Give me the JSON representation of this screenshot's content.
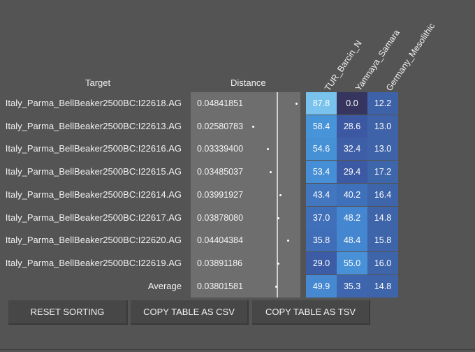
{
  "headers": {
    "target": "Target",
    "distance": "Distance",
    "columns": [
      "TUR_Barcin_N",
      "Yamnaya_Samara",
      "Germany_Mesolithic"
    ]
  },
  "rows": [
    {
      "target": "Italy_Parma_BellBeaker2500BC:I22618.AG",
      "distance": "0.04841851",
      "distance_value": 0.04841851,
      "values": [
        "87.8",
        "0.0",
        "12.2"
      ],
      "colors": [
        "#79c2ee",
        "#35355f",
        "#3e62a8"
      ]
    },
    {
      "target": "Italy_Parma_BellBeaker2500BC:I22613.AG",
      "distance": "0.02580783",
      "distance_value": 0.02580783,
      "values": [
        "58.4",
        "28.6",
        "13.0"
      ],
      "colors": [
        "#4894d8",
        "#3c58a2",
        "#3e63a8"
      ]
    },
    {
      "target": "Italy_Parma_BellBeaker2500BC:I22616.AG",
      "distance": "0.03339400",
      "distance_value": 0.033394,
      "values": [
        "54.6",
        "32.4",
        "13.0"
      ],
      "colors": [
        "#4690d6",
        "#3e5ea8",
        "#3e63a8"
      ]
    },
    {
      "target": "Italy_Parma_BellBeaker2500BC:I22615.AG",
      "distance": "0.03485037",
      "distance_value": 0.03485037,
      "values": [
        "53.4",
        "29.4",
        "17.2"
      ],
      "colors": [
        "#468ed5",
        "#3c59a3",
        "#3e66ab"
      ]
    },
    {
      "target": "Italy_Parma_BellBeaker2500BC:I22614.AG",
      "distance": "0.03991927",
      "distance_value": 0.03991927,
      "values": [
        "43.4",
        "40.2",
        "16.4"
      ],
      "colors": [
        "#4277c0",
        "#3f70ba",
        "#3e65aa"
      ]
    },
    {
      "target": "Italy_Parma_BellBeaker2500BC:I22617.AG",
      "distance": "0.03878080",
      "distance_value": 0.0387808,
      "values": [
        "37.0",
        "48.2",
        "14.8"
      ],
      "colors": [
        "#4170ba",
        "#4486cf",
        "#3e64a9"
      ]
    },
    {
      "target": "Italy_Parma_BellBeaker2500BC:I22620.AG",
      "distance": "0.04404384",
      "distance_value": 0.04404384,
      "values": [
        "35.8",
        "48.4",
        "15.8"
      ],
      "colors": [
        "#406db7",
        "#4486cf",
        "#3e65aa"
      ]
    },
    {
      "target": "Italy_Parma_BellBeaker2500BC:I22619.AG",
      "distance": "0.03891186",
      "distance_value": 0.03891186,
      "values": [
        "29.0",
        "55.0",
        "16.0"
      ],
      "colors": [
        "#3c5ca6",
        "#4891d6",
        "#3e65aa"
      ]
    }
  ],
  "average": {
    "label": "Average",
    "distance": "0.03801581",
    "distance_value": 0.03801581,
    "values": [
      "49.9",
      "35.3",
      "14.8"
    ],
    "colors": [
      "#4689d1",
      "#3e66ae",
      "#3e64a9"
    ]
  },
  "buttons": {
    "reset": "RESET SORTING",
    "csv": "COPY TABLE AS CSV",
    "tsv": "COPY TABLE AS TSV"
  }
}
